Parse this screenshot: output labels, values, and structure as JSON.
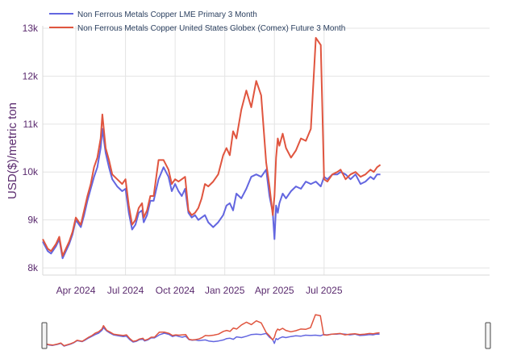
{
  "chart_data": {
    "type": "line",
    "title": "",
    "ylabel": "USD($)/metric ton",
    "xlabel": "",
    "ylim": [
      7850,
      13050
    ],
    "yticks": [
      {
        "value": 8000,
        "label": "8k"
      },
      {
        "value": 9000,
        "label": "9k"
      },
      {
        "value": 10000,
        "label": "10k"
      },
      {
        "value": 11000,
        "label": "11k"
      },
      {
        "value": 12000,
        "label": "12k"
      },
      {
        "value": 13000,
        "label": "13k"
      }
    ],
    "xlim": [
      0,
      27
    ],
    "xticks": [
      {
        "value": 2,
        "label": "Apr 2024"
      },
      {
        "value": 5,
        "label": "Jul 2024"
      },
      {
        "value": 8,
        "label": "Oct 2024"
      },
      {
        "value": 11,
        "label": "Jan 2025"
      },
      {
        "value": 14,
        "label": "Apr 2025"
      },
      {
        "value": 17,
        "label": "Jul 2025"
      }
    ],
    "x_unit": "months since 2024-02-01",
    "legend_position": "top-left",
    "series": [
      {
        "name": "Non Ferrous Metals Copper LME Primary 3 Month",
        "color": "#6366e0",
        "x": [
          0.0,
          0.3,
          0.5,
          0.8,
          1.0,
          1.2,
          1.4,
          1.6,
          1.8,
          2.0,
          2.3,
          2.5,
          2.7,
          2.9,
          3.1,
          3.3,
          3.5,
          3.6,
          3.8,
          4.0,
          4.2,
          4.5,
          4.8,
          5.0,
          5.2,
          5.4,
          5.6,
          5.8,
          6.0,
          6.1,
          6.3,
          6.5,
          6.7,
          7.0,
          7.3,
          7.6,
          7.8,
          8.0,
          8.2,
          8.4,
          8.6,
          8.8,
          9.0,
          9.2,
          9.4,
          9.6,
          9.8,
          10.0,
          10.3,
          10.6,
          10.9,
          11.1,
          11.3,
          11.5,
          11.7,
          12.0,
          12.3,
          12.6,
          12.9,
          13.2,
          13.5,
          13.7,
          13.9,
          14.0,
          14.1,
          14.2,
          14.3,
          14.5,
          14.7,
          15.0,
          15.3,
          15.6,
          15.9,
          16.2,
          16.5,
          16.8,
          17.0,
          17.2,
          17.5,
          17.8,
          18.0,
          18.3,
          18.6,
          18.9,
          19.2,
          19.5,
          19.8,
          20.0,
          20.2,
          20.4
        ],
        "values": [
          8550,
          8350,
          8300,
          8450,
          8600,
          8200,
          8350,
          8500,
          8700,
          9000,
          8850,
          9100,
          9400,
          9650,
          9900,
          10100,
          10500,
          10900,
          10400,
          10100,
          9850,
          9700,
          9600,
          9650,
          9150,
          8800,
          8900,
          9150,
          9200,
          8950,
          9100,
          9400,
          9400,
          9850,
          10100,
          9900,
          9600,
          9750,
          9600,
          9500,
          9650,
          9150,
          9050,
          9100,
          9000,
          9050,
          9100,
          8950,
          8850,
          8950,
          9100,
          9300,
          9350,
          9200,
          9550,
          9450,
          9650,
          9900,
          9950,
          9900,
          10050,
          9500,
          9150,
          8600,
          9300,
          9150,
          9350,
          9550,
          9450,
          9600,
          9700,
          9650,
          9800,
          9750,
          9800,
          9700,
          9900,
          9850,
          9950,
          9950,
          10000,
          9950,
          9850,
          9950,
          9750,
          9800,
          9900,
          9850,
          9950,
          9950
        ]
      },
      {
        "name": "Non Ferrous Metals Copper United States Globex (Comex) Future 3 Month",
        "color": "#e0553f",
        "x": [
          0.0,
          0.3,
          0.5,
          0.8,
          1.0,
          1.2,
          1.4,
          1.6,
          1.8,
          2.0,
          2.3,
          2.5,
          2.7,
          2.9,
          3.1,
          3.3,
          3.5,
          3.6,
          3.8,
          4.0,
          4.2,
          4.5,
          4.8,
          5.0,
          5.2,
          5.4,
          5.6,
          5.8,
          6.0,
          6.1,
          6.3,
          6.5,
          6.7,
          7.0,
          7.3,
          7.6,
          7.8,
          8.0,
          8.2,
          8.4,
          8.6,
          8.8,
          9.0,
          9.2,
          9.4,
          9.6,
          9.8,
          10.0,
          10.3,
          10.6,
          10.9,
          11.1,
          11.3,
          11.5,
          11.7,
          12.0,
          12.3,
          12.6,
          12.9,
          13.2,
          13.5,
          13.7,
          13.9,
          14.0,
          14.1,
          14.2,
          14.3,
          14.5,
          14.7,
          15.0,
          15.3,
          15.6,
          15.9,
          16.2,
          16.5,
          16.8,
          17.0,
          17.2,
          17.5,
          17.8,
          18.0,
          18.3,
          18.6,
          18.9,
          19.2,
          19.5,
          19.8,
          20.0,
          20.2,
          20.4
        ],
        "values": [
          8600,
          8400,
          8350,
          8500,
          8650,
          8250,
          8400,
          8550,
          8750,
          9050,
          8900,
          9200,
          9500,
          9750,
          10100,
          10300,
          10700,
          11200,
          10500,
          10250,
          9950,
          9850,
          9750,
          9850,
          9300,
          8900,
          9000,
          9250,
          9350,
          9050,
          9200,
          9500,
          9500,
          10250,
          10250,
          10050,
          9750,
          9850,
          9800,
          9850,
          9900,
          9200,
          9100,
          9150,
          9250,
          9450,
          9750,
          9700,
          9800,
          9950,
          10350,
          10500,
          10350,
          10850,
          10700,
          11300,
          11700,
          11350,
          11900,
          11600,
          10200,
          9700,
          9100,
          9500,
          10300,
          10700,
          10550,
          10800,
          10500,
          10300,
          10450,
          10700,
          10650,
          10900,
          12800,
          12650,
          9850,
          9800,
          9950,
          10000,
          10050,
          9850,
          9950,
          10000,
          9900,
          9950,
          10050,
          10000,
          10100,
          10150
        ]
      }
    ],
    "range_slider": {
      "handle_left": "left-edge",
      "handle_right": "right-edge"
    }
  }
}
